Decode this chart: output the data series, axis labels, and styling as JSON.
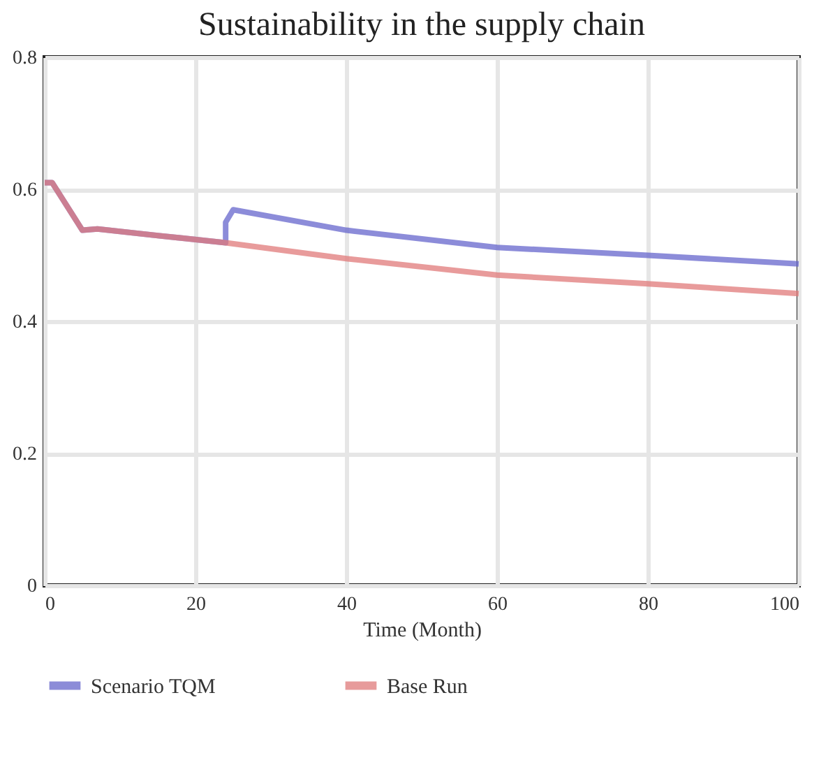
{
  "chart_data": {
    "type": "line",
    "title": "Sustainability in the supply chain",
    "xlabel": "Time (Month)",
    "xlim": [
      0,
      100
    ],
    "xticks": [
      0,
      20,
      40,
      60,
      80,
      100
    ],
    "ylim": [
      0,
      0.8
    ],
    "yticks": [
      0,
      0.2,
      0.4,
      0.6,
      0.8
    ],
    "grid": true,
    "legend": "bottom",
    "series": [
      {
        "name": "Scenario TQM",
        "color": "#6666cc",
        "x": [
          0,
          1,
          5,
          7,
          15,
          24,
          24,
          25,
          40,
          60,
          80,
          100
        ],
        "values": [
          0.61,
          0.61,
          0.538,
          0.54,
          0.53,
          0.519,
          0.55,
          0.569,
          0.538,
          0.512,
          0.5,
          0.487
        ]
      },
      {
        "name": "Base Run",
        "color": "#e07a7a",
        "x": [
          0,
          1,
          5,
          7,
          15,
          24,
          40,
          60,
          80,
          100
        ],
        "values": [
          0.61,
          0.61,
          0.538,
          0.54,
          0.53,
          0.519,
          0.495,
          0.47,
          0.457,
          0.442
        ]
      }
    ]
  }
}
